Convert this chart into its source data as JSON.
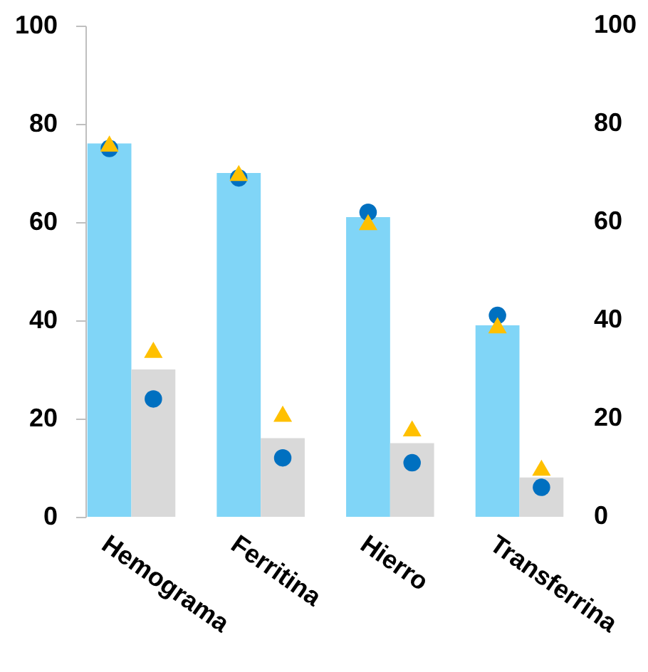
{
  "chart_data": {
    "type": "bar",
    "categories": [
      "Hemograma",
      "Ferritina",
      "Hierro",
      "Transferrina"
    ],
    "series": [
      {
        "color": "#80d5f7",
        "values": [
          76,
          70,
          61,
          39
        ]
      },
      {
        "color": "#d9d9d9",
        "values": [
          30,
          16,
          15,
          8
        ]
      },
      {
        "type": "scatter",
        "marker": "circle",
        "color": "#0070c0",
        "values": [
          75,
          69,
          62,
          41
        ]
      },
      {
        "type": "scatter",
        "marker": "circle",
        "color": "#0070c0",
        "values": [
          24,
          12,
          11,
          6
        ]
      },
      {
        "type": "scatter",
        "marker": "triangle",
        "color": "#ffc000",
        "values": [
          76,
          70,
          60,
          39
        ]
      },
      {
        "type": "scatter",
        "marker": "triangle",
        "color": "#ffc000",
        "values": [
          34,
          21,
          18,
          10
        ]
      }
    ],
    "ylim": [
      0,
      100
    ],
    "yticks": [
      0,
      20,
      40,
      60,
      80,
      100
    ],
    "y2lim": [
      0,
      100
    ],
    "y2ticks": [
      0,
      20,
      40,
      60,
      80,
      100
    ]
  }
}
